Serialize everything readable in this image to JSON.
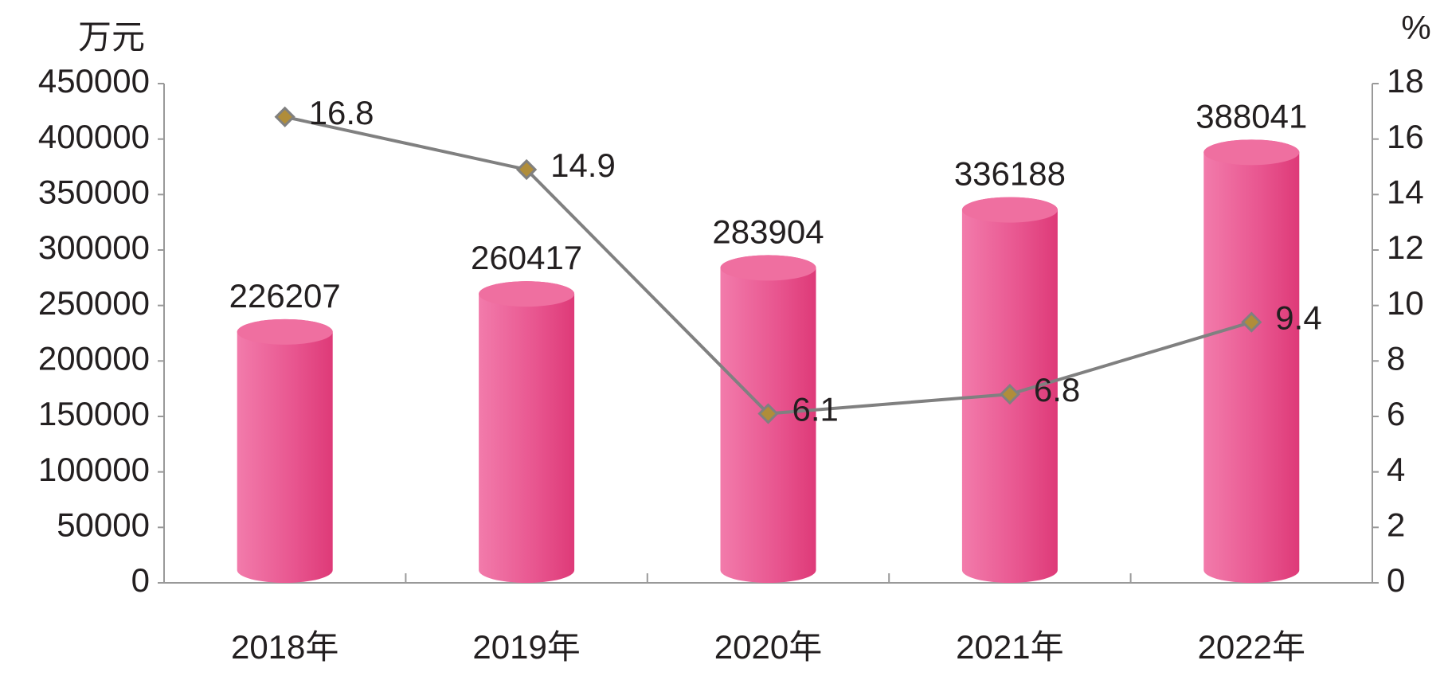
{
  "chart_data": {
    "type": "bar",
    "categories": [
      "2018年",
      "2019年",
      "2020年",
      "2021年",
      "2022年"
    ],
    "y_label": "万元",
    "y2_label": "%",
    "series": [
      {
        "color": "#e8558f",
        "values": [
          226207,
          260417,
          283904,
          336188,
          388041
        ]
      },
      {
        "type": "line",
        "axis": "y2",
        "color": "#808080",
        "marker_color": "#b08d3a",
        "values": [
          16.8,
          14.9,
          6.1,
          6.8,
          9.4
        ]
      }
    ],
    "ylim": [
      0,
      450000
    ],
    "yticks": [
      0,
      50000,
      100000,
      150000,
      200000,
      250000,
      300000,
      350000,
      400000,
      450000
    ],
    "y2lim": [
      0,
      18
    ],
    "y2ticks": [
      0,
      2,
      4,
      6,
      8,
      10,
      12,
      14,
      16,
      18
    ]
  }
}
